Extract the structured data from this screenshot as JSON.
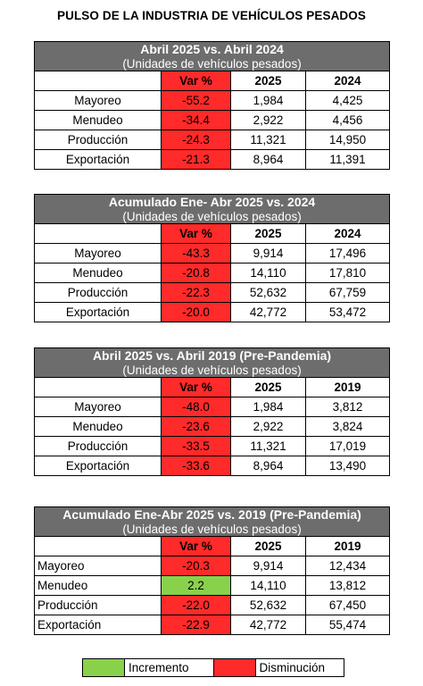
{
  "page_title": "PULSO DE LA INDUSTRIA DE VEHÍCULOS PESADOS",
  "col_var": "Var %",
  "blocks": [
    {
      "title": "Abril 2025 vs. Abril 2024",
      "subtitle": "(Unidades de vehículos pesados)",
      "years": [
        "2025",
        "2024"
      ],
      "rows": [
        {
          "label": "Mayoreo",
          "var": "-55.2",
          "a": "1,984",
          "b": "4,425",
          "trend": "down"
        },
        {
          "label": "Menudeo",
          "var": "-34.4",
          "a": "2,922",
          "b": "4,456",
          "trend": "down"
        },
        {
          "label": "Producción",
          "var": "-24.3",
          "a": "11,321",
          "b": "14,950",
          "trend": "down"
        },
        {
          "label": "Exportación",
          "var": "-21.3",
          "a": "8,964",
          "b": "11,391",
          "trend": "down"
        }
      ]
    },
    {
      "title": "Acumulado Ene- Abr 2025 vs. 2024",
      "subtitle": "(Unidades de vehículos pesados)",
      "years": [
        "2025",
        "2024"
      ],
      "rows": [
        {
          "label": "Mayoreo",
          "var": "-43.3",
          "a": "9,914",
          "b": "17,496",
          "trend": "down"
        },
        {
          "label": "Menudeo",
          "var": "-20.8",
          "a": "14,110",
          "b": "17,810",
          "trend": "down"
        },
        {
          "label": "Producción",
          "var": "-22.3",
          "a": "52,632",
          "b": "67,759",
          "trend": "down"
        },
        {
          "label": "Exportación",
          "var": "-20.0",
          "a": "42,772",
          "b": "53,472",
          "trend": "down"
        }
      ]
    },
    {
      "title": "Abril 2025 vs. Abril 2019 (Pre-Pandemia)",
      "subtitle": "(Unidades de vehículos pesados)",
      "years": [
        "2025",
        "2019"
      ],
      "rows": [
        {
          "label": "Mayoreo",
          "var": "-48.0",
          "a": "1,984",
          "b": "3,812",
          "trend": "down"
        },
        {
          "label": "Menudeo",
          "var": "-23.6",
          "a": "2,922",
          "b": "3,824",
          "trend": "down"
        },
        {
          "label": "Producción",
          "var": "-33.5",
          "a": "11,321",
          "b": "17,019",
          "trend": "down"
        },
        {
          "label": "Exportación",
          "var": "-33.6",
          "a": "8,964",
          "b": "13,490",
          "trend": "down"
        }
      ]
    },
    {
      "title": "Acumulado Ene-Abr 2025 vs. 2019 (Pre-Pandemia)",
      "subtitle": "(Unidades de vehículos pesados)",
      "years": [
        "2025",
        "2019"
      ],
      "rows": [
        {
          "label": "Mayoreo",
          "var": "-20.3",
          "a": "9,914",
          "b": "12,434",
          "trend": "down"
        },
        {
          "label": "Menudeo",
          "var": "2.2",
          "a": "14,110",
          "b": "13,812",
          "trend": "up"
        },
        {
          "label": "Producción",
          "var": "-22.0",
          "a": "52,632",
          "b": "67,450",
          "trend": "down"
        },
        {
          "label": "Exportación",
          "var": "-22.9",
          "a": "42,772",
          "b": "55,474",
          "trend": "down"
        }
      ]
    }
  ],
  "legend": {
    "increase_label": "Incremento",
    "decrease_label": "Disminución",
    "increase_color": "#8ad14b",
    "decrease_color": "#ff2a2a"
  }
}
